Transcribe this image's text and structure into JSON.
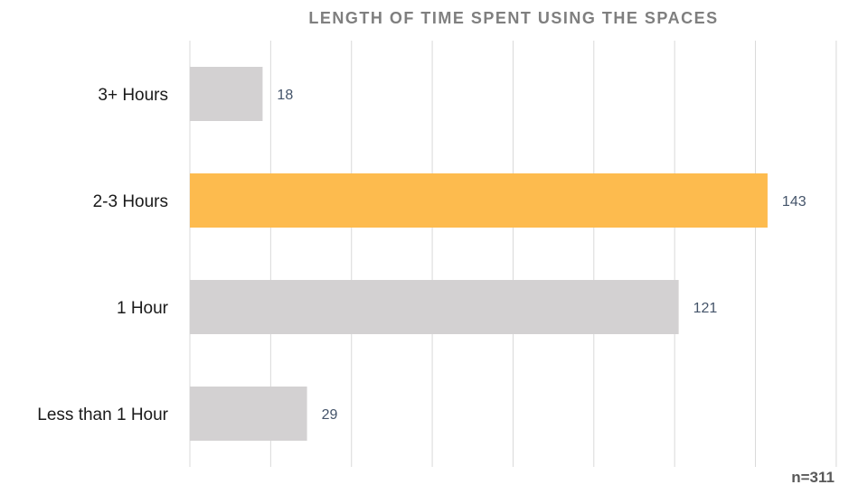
{
  "chart_data": {
    "type": "bar",
    "orientation": "horizontal",
    "title": "LENGTH OF TIME SPENT USING THE SPACES",
    "categories": [
      "3+ Hours",
      "2-3 Hours",
      "1 Hour",
      "Less than 1 Hour"
    ],
    "values": [
      18,
      143,
      121,
      29
    ],
    "highlight_index": 1,
    "xlim": [
      0,
      160
    ],
    "grid": true,
    "xlabel": "",
    "ylabel": "",
    "note": "n=311",
    "colors": {
      "default": "#d3d1d2",
      "highlight": "#fdbb4e",
      "grid": "#d9d9d9"
    }
  }
}
